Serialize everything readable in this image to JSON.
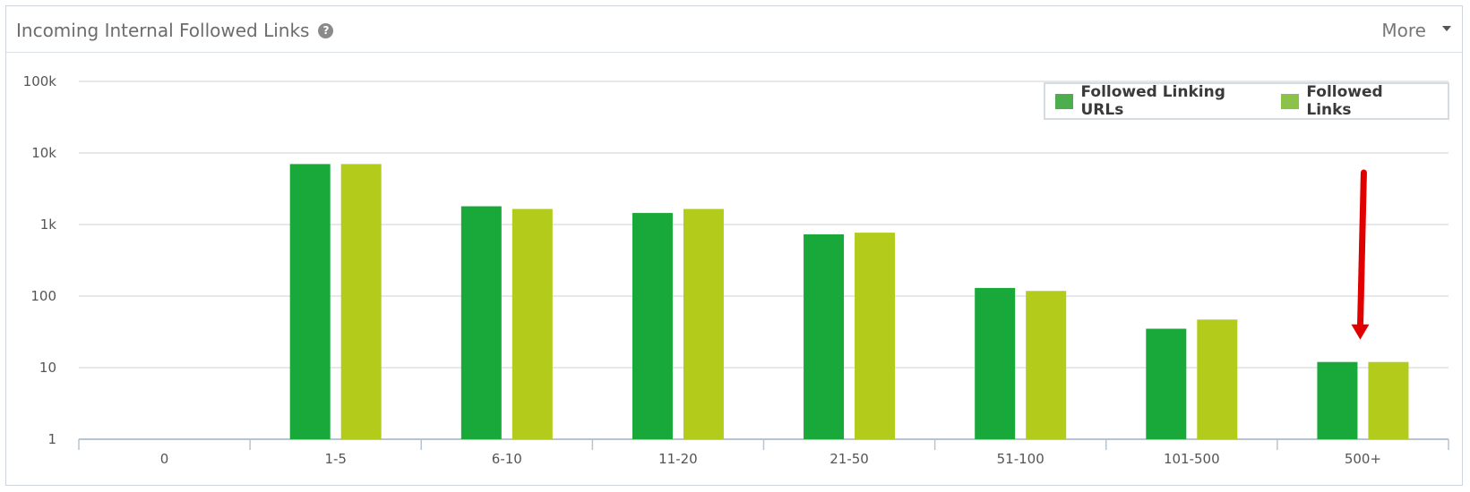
{
  "panel": {
    "title": "Incoming Internal Followed Links",
    "more_label": "More"
  },
  "colors": {
    "series1": "#19a93b",
    "series2": "#b3cc1c",
    "legend_series1": "#4cae4f",
    "legend_series2": "#8bc34a",
    "grid": "#dde1e6",
    "axis": "#b7c4d1",
    "annotation_arrow": "#e10000"
  },
  "chart_data": {
    "type": "bar",
    "y_scale": "log",
    "ylim": [
      1,
      100000
    ],
    "y_ticks": [
      {
        "value": 1,
        "label": "1"
      },
      {
        "value": 10,
        "label": "10"
      },
      {
        "value": 100,
        "label": "100"
      },
      {
        "value": 1000,
        "label": "1k"
      },
      {
        "value": 10000,
        "label": "10k"
      },
      {
        "value": 100000,
        "label": "100k"
      }
    ],
    "categories": [
      "0",
      "1-5",
      "6-10",
      "11-20",
      "21-50",
      "51-100",
      "101-500",
      "500+"
    ],
    "series": [
      {
        "name": "Followed Linking URLs",
        "values": [
          0,
          7000,
          1800,
          1450,
          730,
          130,
          35,
          12
        ]
      },
      {
        "name": "Followed Links",
        "values": [
          0,
          7000,
          1650,
          1650,
          770,
          118,
          47,
          12
        ]
      }
    ],
    "legend_position": "top-right",
    "grid": true,
    "annotation": {
      "type": "arrow",
      "target_category": "500+"
    }
  }
}
